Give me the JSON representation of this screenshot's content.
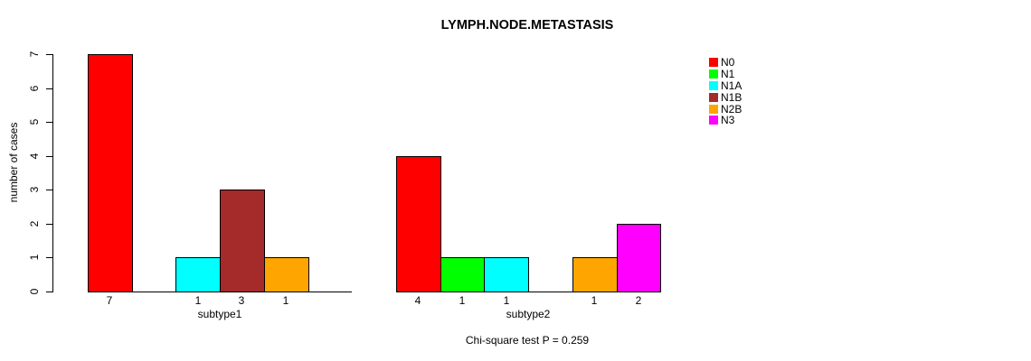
{
  "chart_data": {
    "type": "bar",
    "title": "LYMPH.NODE.METASTASIS",
    "ylabel": "number of cases",
    "xlabel": "",
    "ylim": [
      0,
      7
    ],
    "yticks": [
      "0",
      "1",
      "2",
      "3",
      "4",
      "5",
      "6",
      "7"
    ],
    "grid": false,
    "legend_position": "right",
    "legend": [
      {
        "label": "N0",
        "color": "#ff0000"
      },
      {
        "label": "N1",
        "color": "#00ff00"
      },
      {
        "label": "N1A",
        "color": "#00ffff"
      },
      {
        "label": "N1B",
        "color": "#a52a2a"
      },
      {
        "label": "N2B",
        "color": "#ffa500"
      },
      {
        "label": "N3",
        "color": "#ff00ff"
      }
    ],
    "categories": [
      "subtype1",
      "subtype2"
    ],
    "series": [
      {
        "name": "N0",
        "values": [
          7,
          4
        ]
      },
      {
        "name": "N1",
        "values": [
          0,
          1
        ]
      },
      {
        "name": "N1A",
        "values": [
          1,
          1
        ]
      },
      {
        "name": "N1B",
        "values": [
          3,
          0
        ]
      },
      {
        "name": "N2B",
        "values": [
          1,
          1
        ]
      },
      {
        "name": "N3",
        "values": [
          0,
          2
        ]
      }
    ],
    "annotation": "Chi-square test P = 0.259"
  }
}
